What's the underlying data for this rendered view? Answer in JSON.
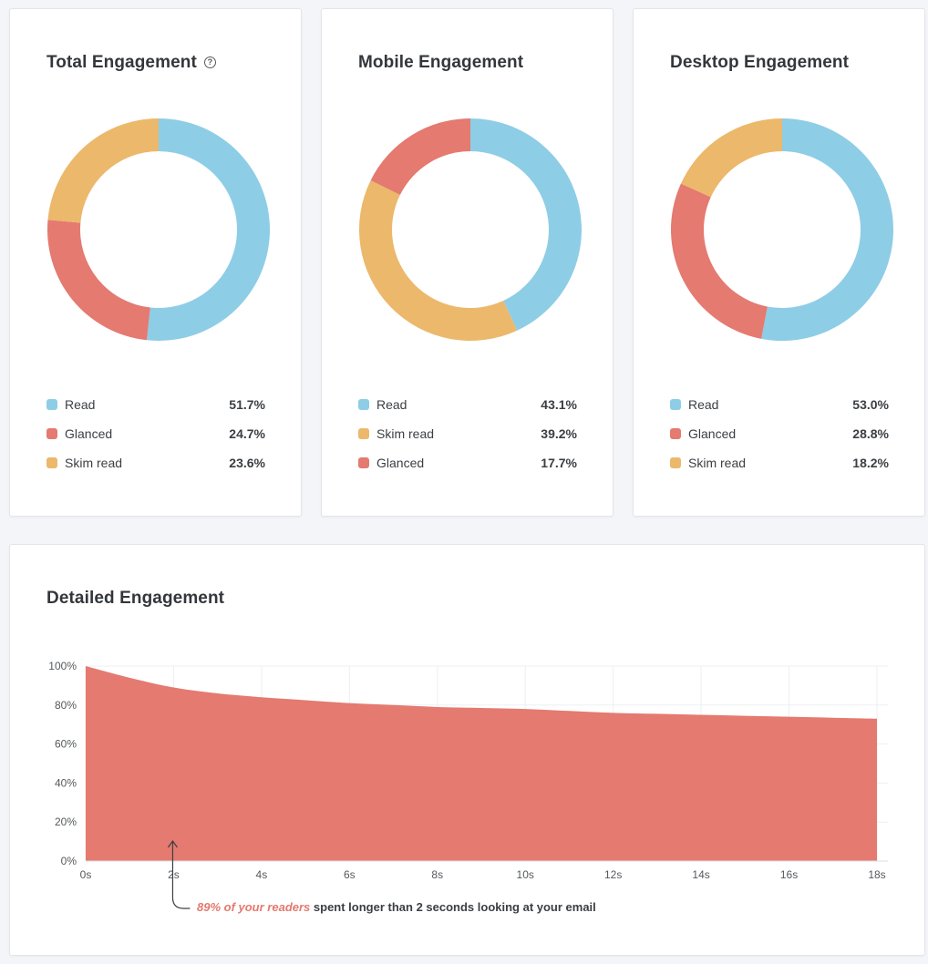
{
  "colors": {
    "read": "#8ecde6",
    "glanced": "#e47a70",
    "skim": "#ecb86b",
    "area": "#e47a70",
    "highlight": "#e4796e"
  },
  "cards": [
    {
      "title": "Total Engagement",
      "has_help": true,
      "segments": [
        {
          "label": "Read",
          "value": 51.7,
          "display": "51.7%",
          "color_key": "read"
        },
        {
          "label": "Glanced",
          "value": 24.7,
          "display": "24.7%",
          "color_key": "glanced"
        },
        {
          "label": "Skim read",
          "value": 23.6,
          "display": "23.6%",
          "color_key": "skim"
        }
      ]
    },
    {
      "title": "Mobile Engagement",
      "has_help": false,
      "segments": [
        {
          "label": "Read",
          "value": 43.1,
          "display": "43.1%",
          "color_key": "read"
        },
        {
          "label": "Skim read",
          "value": 39.2,
          "display": "39.2%",
          "color_key": "skim"
        },
        {
          "label": "Glanced",
          "value": 17.7,
          "display": "17.7%",
          "color_key": "glanced"
        }
      ]
    },
    {
      "title": "Desktop Engagement",
      "has_help": false,
      "segments": [
        {
          "label": "Read",
          "value": 53.0,
          "display": "53.0%",
          "color_key": "read"
        },
        {
          "label": "Glanced",
          "value": 28.8,
          "display": "28.8%",
          "color_key": "glanced"
        },
        {
          "label": "Skim read",
          "value": 18.2,
          "display": "18.2%",
          "color_key": "skim"
        }
      ]
    }
  ],
  "detail": {
    "title": "Detailed Engagement",
    "annotation_highlight": "89% of your readers",
    "annotation_rest": " spent longer than 2 seconds looking at your email"
  },
  "chart_data": [
    {
      "type": "pie",
      "title": "Total Engagement",
      "categories": [
        "Read",
        "Glanced",
        "Skim read"
      ],
      "values": [
        51.7,
        24.7,
        23.6
      ]
    },
    {
      "type": "pie",
      "title": "Mobile Engagement",
      "categories": [
        "Read",
        "Skim read",
        "Glanced"
      ],
      "values": [
        43.1,
        39.2,
        17.7
      ]
    },
    {
      "type": "pie",
      "title": "Desktop Engagement",
      "categories": [
        "Read",
        "Glanced",
        "Skim read"
      ],
      "values": [
        53.0,
        28.8,
        18.2
      ]
    },
    {
      "type": "area",
      "title": "Detailed Engagement",
      "x": [
        0,
        1,
        2,
        3,
        4,
        5,
        6,
        7,
        8,
        9,
        10,
        11,
        12,
        13,
        14,
        15,
        16,
        17,
        18
      ],
      "values": [
        100,
        94,
        89,
        86,
        84,
        82.5,
        81,
        80,
        79,
        78.5,
        78,
        77,
        76,
        75.5,
        75,
        74.5,
        74,
        73.5,
        73
      ],
      "x_ticks": [
        "0s",
        "2s",
        "4s",
        "6s",
        "8s",
        "10s",
        "12s",
        "14s",
        "16s",
        "18s"
      ],
      "x_tick_values": [
        0,
        2,
        4,
        6,
        8,
        10,
        12,
        14,
        16,
        18
      ],
      "y_ticks": [
        "0%",
        "20%",
        "40%",
        "60%",
        "80%",
        "100%"
      ],
      "y_tick_values": [
        0,
        20,
        40,
        60,
        80,
        100
      ],
      "xlim": [
        0,
        18
      ],
      "ylim": [
        0,
        100
      ],
      "grid": true,
      "xlabel": "",
      "ylabel": ""
    }
  ]
}
